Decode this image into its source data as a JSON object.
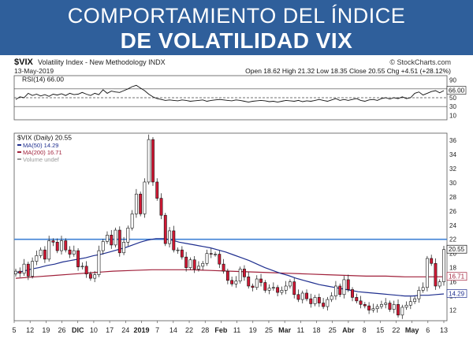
{
  "banner": {
    "title_line1": "COMPORTAMIENTO DEL ÍNDICE",
    "title_line2": "DE VOLATILIDAD VIX",
    "bg_color": "#2f5f9b"
  },
  "header": {
    "symbol": "$VIX",
    "name": "Volatility Index - New Methodology INDX",
    "date": "13-May-2019",
    "quote": "Open 18.62  High 21.32  Low 18.35  Close 20.55  Chg +4.51 (+28.12%)",
    "watermark": "© StockCharts.com"
  },
  "chart_data": [
    {
      "type": "line",
      "title": "RSI(14) 66.00",
      "ylim": [
        0,
        100
      ],
      "yticks": [
        10,
        30,
        50,
        70,
        90
      ],
      "reference_lines": [
        30,
        50,
        70
      ],
      "last_value_label": "66.00",
      "values": [
        46,
        52,
        50,
        60,
        55,
        58,
        54,
        57,
        53,
        58,
        56,
        59,
        55,
        60,
        57,
        58,
        62,
        58,
        55,
        60,
        57,
        68,
        60,
        65,
        63,
        62,
        66,
        70,
        75,
        78,
        72,
        66,
        58,
        52,
        48,
        46,
        44,
        45,
        44,
        43,
        45,
        44,
        42,
        43,
        44,
        45,
        42,
        44,
        45,
        46,
        45,
        44,
        43,
        45,
        44,
        42,
        40,
        42,
        43,
        44,
        43,
        41,
        42,
        40,
        42,
        44,
        43,
        42,
        44,
        41,
        43,
        42,
        44,
        46,
        44,
        42,
        45,
        48,
        44,
        46,
        44,
        46,
        48,
        44,
        42,
        45,
        46,
        44,
        48,
        50,
        47,
        50,
        48,
        52,
        48,
        50,
        60,
        63,
        56,
        60,
        64,
        66,
        61,
        66
      ]
    },
    {
      "type": "candlestick",
      "title": "$VIX (Daily) 20.55",
      "legend": [
        {
          "name": "MA(50) 14.29",
          "color": "#1f2f8f"
        },
        {
          "name": "MA(200) 16.71",
          "color": "#a0203a"
        },
        {
          "name": "Volume undef",
          "color": "#999999"
        }
      ],
      "ylim": [
        10.5,
        37
      ],
      "yticks": [
        12,
        14,
        16,
        18,
        20,
        22,
        24,
        26,
        28,
        30,
        32,
        34,
        36
      ],
      "x_labels": [
        "5",
        "12",
        "19",
        "26",
        "DIC",
        "10",
        "17",
        "24",
        "2019",
        "7",
        "14",
        "22",
        "28",
        "Feb",
        "11",
        "19",
        "25",
        "Mar",
        "11",
        "18",
        "25",
        "Abr",
        "8",
        "15",
        "22",
        "May",
        "6",
        "13"
      ],
      "horizontal_line": {
        "value": 22,
        "color": "#3f82d6"
      },
      "last_labels": [
        {
          "value": 20.55,
          "text": "20.55",
          "color": "#111111"
        },
        {
          "value": 16.71,
          "text": "16.71",
          "color": "#a0203a"
        },
        {
          "value": 14.29,
          "text": "14.29",
          "color": "#1f2f8f"
        }
      ],
      "close": [
        17.5,
        17.2,
        18.5,
        16.8,
        18.9,
        19.7,
        20.5,
        19.2,
        21.8,
        21.6,
        20.4,
        21.8,
        20.5,
        19.9,
        20.4,
        18.1,
        18.2,
        17.1,
        16.5,
        17.0,
        20.4,
        21.7,
        22.6,
        21.2,
        23.3,
        20.1,
        21.6,
        23.6,
        25.6,
        28.4,
        25.6,
        30.1,
        36.1,
        30.1,
        27.8,
        25.4,
        21.4,
        23.2,
        20.5,
        20.5,
        19.5,
        18.0,
        19.1,
        17.8,
        18.2,
        18.6,
        20.0,
        19.9,
        19.9,
        18.5,
        17.5,
        16.2,
        15.7,
        16.1,
        17.8,
        16.7,
        15.4,
        15.2,
        16.4,
        15.9,
        14.8,
        15.1,
        15.2,
        14.5,
        14.8,
        15.4,
        16.0,
        14.2,
        13.5,
        14.4,
        13.6,
        12.9,
        13.8,
        13.0,
        12.5,
        13.5,
        14.0,
        15.4,
        14.2,
        16.3,
        14.9,
        13.8,
        13.3,
        12.8,
        12.6,
        12.0,
        12.2,
        12.5,
        12.8,
        13.0,
        12.1,
        12.8,
        11.3,
        12.4,
        12.7,
        13.2,
        13.6,
        14.8,
        15.2,
        19.3,
        18.6,
        15.4,
        16.0,
        20.55
      ],
      "ma50": [
        17.3,
        17.5,
        17.8,
        18.0,
        18.3,
        18.5,
        18.8,
        19.0,
        19.2,
        19.4,
        19.7,
        19.9,
        20.2,
        20.5,
        20.8,
        21.2,
        21.6,
        21.9,
        22.1,
        22.1,
        21.9,
        21.6,
        21.4,
        21.2,
        21.0,
        20.8,
        20.5,
        20.2,
        19.8,
        19.4,
        19.0,
        18.5,
        18.0,
        17.6,
        17.2,
        16.9,
        16.5,
        16.2,
        15.9,
        15.6,
        15.4,
        15.2,
        15.0,
        14.8,
        14.6,
        14.5,
        14.4,
        14.3,
        14.2,
        14.1,
        14.0,
        14.0,
        14.1,
        14.1,
        14.2,
        14.29
      ],
      "ma200": [
        16.5,
        16.7,
        16.9,
        17.1,
        17.3,
        17.5,
        17.6,
        17.7,
        17.7,
        17.7,
        17.6,
        17.5,
        17.4,
        17.3,
        17.2,
        17.1,
        17.0,
        16.9,
        16.8,
        16.8,
        16.7,
        16.7,
        16.71
      ]
    }
  ]
}
